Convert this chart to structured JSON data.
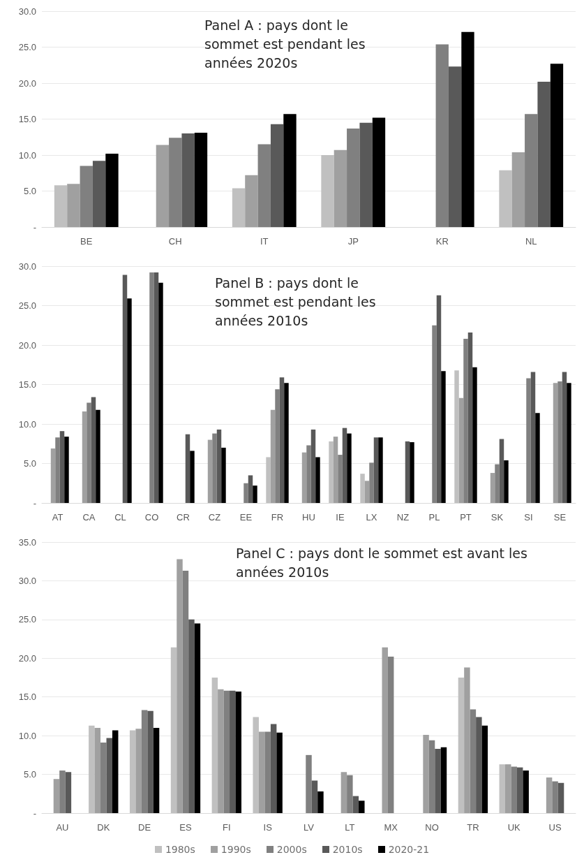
{
  "chart_data": [
    {
      "type": "bar",
      "title": "Panel A : pays dont le sommet est pendant les années 2020s",
      "categories": [
        "BE",
        "CH",
        "IT",
        "JP",
        "KR",
        "NL"
      ],
      "series": [
        {
          "color": "#c0c0c0",
          "values": [
            5.8,
            null,
            5.4,
            10.0,
            null,
            7.9
          ]
        },
        {
          "color": "#a0a0a0",
          "values": [
            6.0,
            11.4,
            7.2,
            10.7,
            null,
            10.4
          ]
        },
        {
          "color": "#808080",
          "values": [
            8.5,
            12.4,
            11.5,
            13.7,
            25.4,
            15.7
          ]
        },
        {
          "color": "#595959",
          "values": [
            9.2,
            13.0,
            14.3,
            14.5,
            22.3,
            20.2
          ]
        },
        {
          "color": "#000000",
          "values": [
            10.2,
            13.1,
            15.7,
            15.2,
            27.1,
            22.7
          ]
        }
      ],
      "ylim": [
        0,
        30
      ],
      "yticks": [
        {
          "value": 0,
          "label": "-"
        },
        {
          "value": 5,
          "label": "5.0"
        },
        {
          "value": 10,
          "label": "10.0"
        },
        {
          "value": 15,
          "label": "15.0"
        },
        {
          "value": 20,
          "label": "20.0"
        },
        {
          "value": 25,
          "label": "25.0"
        },
        {
          "value": 30,
          "label": "30.0"
        }
      ],
      "grid": "y"
    },
    {
      "type": "bar",
      "title": "Panel B : pays dont le sommet est pendant les années 2010s",
      "categories": [
        "AT",
        "CA",
        "CL",
        "CO",
        "CR",
        "CZ",
        "EE",
        "FR",
        "HU",
        "IE",
        "LX",
        "NZ",
        "PL",
        "PT",
        "SK",
        "SI",
        "SE"
      ],
      "series": [
        {
          "color": "#c0c0c0",
          "values": [
            null,
            null,
            null,
            null,
            null,
            null,
            null,
            5.8,
            null,
            7.8,
            3.7,
            null,
            null,
            16.8,
            null,
            null,
            null
          ]
        },
        {
          "color": "#a0a0a0",
          "values": [
            6.9,
            11.6,
            null,
            null,
            null,
            8.0,
            null,
            11.8,
            6.4,
            8.4,
            2.8,
            null,
            null,
            13.3,
            3.8,
            null,
            15.2
          ]
        },
        {
          "color": "#808080",
          "values": [
            8.3,
            12.7,
            null,
            29.2,
            null,
            8.8,
            2.5,
            14.4,
            7.3,
            6.1,
            5.1,
            null,
            22.5,
            20.8,
            4.9,
            15.8,
            15.4
          ]
        },
        {
          "color": "#595959",
          "values": [
            9.1,
            13.4,
            28.9,
            29.2,
            8.7,
            9.3,
            3.5,
            15.9,
            9.3,
            9.5,
            8.3,
            7.8,
            26.3,
            21.6,
            8.1,
            16.6,
            16.6
          ]
        },
        {
          "color": "#000000",
          "values": [
            8.4,
            11.8,
            25.9,
            27.9,
            6.6,
            7.0,
            2.2,
            15.2,
            5.8,
            8.8,
            8.3,
            7.7,
            16.7,
            17.2,
            5.4,
            11.4,
            15.2
          ]
        }
      ],
      "ylim": [
        0,
        30
      ],
      "yticks": [
        {
          "value": 0,
          "label": "-"
        },
        {
          "value": 5,
          "label": "5.0"
        },
        {
          "value": 10,
          "label": "10.0"
        },
        {
          "value": 15,
          "label": "15.0"
        },
        {
          "value": 20,
          "label": "20.0"
        },
        {
          "value": 25,
          "label": "25.0"
        },
        {
          "value": 30,
          "label": "30.0"
        }
      ],
      "grid": "y"
    },
    {
      "type": "bar",
      "title": "Panel C : pays dont le sommet est avant les années 2010s",
      "categories": [
        "AU",
        "DK",
        "DE",
        "ES",
        "FI",
        "IS",
        "LV",
        "LT",
        "MX",
        "NO",
        "TR",
        "UK",
        "US"
      ],
      "series": [
        {
          "name": "1980s",
          "color": "#c0c0c0",
          "values": [
            null,
            11.3,
            10.7,
            21.4,
            17.5,
            12.4,
            null,
            null,
            null,
            null,
            17.5,
            6.3,
            null
          ]
        },
        {
          "name": "1990s",
          "color": "#a0a0a0",
          "values": [
            4.4,
            11.0,
            10.9,
            32.8,
            16.0,
            10.5,
            null,
            5.3,
            21.4,
            10.1,
            18.8,
            6.3,
            4.6
          ]
        },
        {
          "name": "2000s",
          "color": "#808080",
          "values": [
            5.5,
            9.1,
            13.3,
            31.3,
            15.8,
            10.5,
            7.5,
            4.9,
            20.2,
            9.4,
            13.4,
            6.0,
            4.1
          ]
        },
        {
          "name": "2010s",
          "color": "#595959",
          "values": [
            5.3,
            9.7,
            13.2,
            25.0,
            15.8,
            11.5,
            4.2,
            2.2,
            null,
            8.3,
            12.4,
            5.9,
            3.9
          ]
        },
        {
          "name": "2020-21",
          "color": "#000000",
          "values": [
            null,
            10.7,
            11.0,
            24.5,
            15.7,
            10.4,
            2.8,
            1.6,
            null,
            8.5,
            11.3,
            5.5,
            null
          ]
        }
      ],
      "ylim": [
        0,
        35
      ],
      "yticks": [
        {
          "value": 0,
          "label": "-"
        },
        {
          "value": 5,
          "label": "5.0"
        },
        {
          "value": 10,
          "label": "10.0"
        },
        {
          "value": 15,
          "label": "15.0"
        },
        {
          "value": 20,
          "label": "20.0"
        },
        {
          "value": 25,
          "label": "25.0"
        },
        {
          "value": 30,
          "label": "30.0"
        },
        {
          "value": 35,
          "label": "35.0"
        }
      ],
      "grid": "y",
      "legend": "bottom"
    }
  ]
}
